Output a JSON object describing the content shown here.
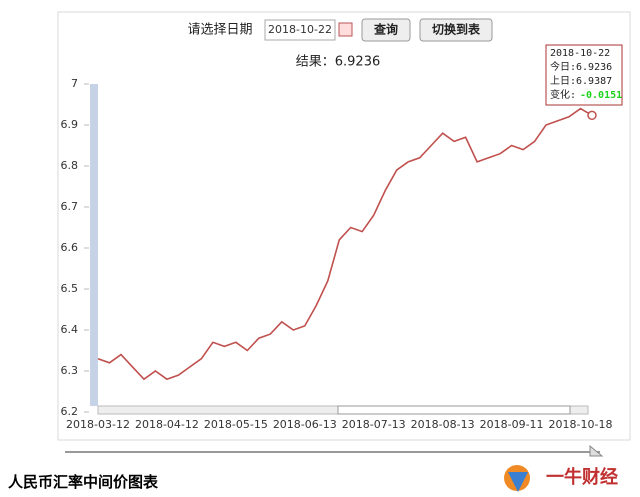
{
  "controls": {
    "date_prompt": "请选择日期",
    "date_value": "2018-10-22",
    "query_button": "查询",
    "switch_button": "切换到表"
  },
  "result": "结果：6.9236",
  "tooltip": {
    "date": "2018-10-22",
    "today": "今日:6.9236",
    "previous": "上日:6.9387",
    "change_label": "变化:",
    "change_value": "-0.0151"
  },
  "footer": {
    "caption": "人民币汇率中间价图表",
    "brand": "一牛财经"
  },
  "chart_data": {
    "type": "line",
    "color": "#c0504d",
    "categories": [
      "2018-03-12",
      null,
      null,
      null,
      null,
      null,
      "2018-04-12",
      null,
      null,
      null,
      null,
      null,
      "2018-05-15",
      null,
      null,
      null,
      null,
      null,
      "2018-06-13",
      null,
      null,
      null,
      null,
      null,
      "2018-07-13",
      null,
      null,
      null,
      null,
      null,
      "2018-08-13",
      null,
      null,
      null,
      null,
      null,
      "2018-09-11",
      null,
      null,
      null,
      null,
      null,
      "2018-10-18",
      null
    ],
    "values": [
      6.33,
      6.32,
      6.34,
      6.31,
      6.28,
      6.3,
      6.28,
      6.29,
      6.31,
      6.33,
      6.37,
      6.36,
      6.37,
      6.35,
      6.38,
      6.39,
      6.42,
      6.4,
      6.41,
      6.46,
      6.52,
      6.62,
      6.65,
      6.64,
      6.68,
      6.74,
      6.79,
      6.81,
      6.82,
      6.85,
      6.88,
      6.86,
      6.87,
      6.81,
      6.82,
      6.83,
      6.85,
      6.84,
      6.86,
      6.9,
      6.91,
      6.92,
      6.94,
      6.9236
    ],
    "ylim": [
      6.2,
      7
    ],
    "yticks": [
      6.2,
      6.3,
      6.4,
      6.5,
      6.6,
      6.7,
      6.8,
      6.9,
      7
    ]
  }
}
